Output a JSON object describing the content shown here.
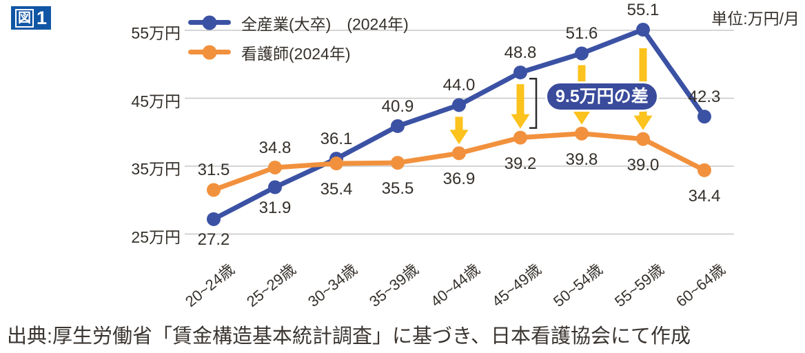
{
  "figure_badge": {
    "kanji": "図",
    "number": "1"
  },
  "unit_label": "単位:万円/月",
  "source_text": "出典:厚生労働省「賃金構造基本統計調査」に基づき、日本看護協会にて作成",
  "chart_data": {
    "type": "line",
    "title": "",
    "xlabel": "",
    "ylabel": "万円/月",
    "ylim": [
      25,
      57
    ],
    "grid": true,
    "legend_position": "top-left-inside",
    "categories": [
      "20~24歳",
      "25~29歳",
      "30~34歳",
      "35~39歳",
      "40~44歳",
      "45~49歳",
      "50~54歳",
      "55~59歳",
      "60~64歳"
    ],
    "y_ticks": [
      {
        "value": 55,
        "label": "55万円"
      },
      {
        "value": 45,
        "label": "45万円"
      },
      {
        "value": 35,
        "label": "35万円"
      },
      {
        "value": 25,
        "label": "25万円"
      }
    ],
    "series": [
      {
        "name": "全産業(大卒)　(2024年)",
        "color": "#3b52a4",
        "values": [
          27.2,
          31.9,
          36.1,
          40.9,
          44.0,
          48.8,
          51.6,
          55.1,
          42.3
        ],
        "label_side": [
          "below",
          "below",
          "above",
          "above",
          "above",
          "above",
          "above",
          "above",
          "above"
        ],
        "label_below_offset": 16
      },
      {
        "name": "看護師(2024年)",
        "color": "#f2913d",
        "values": [
          31.5,
          34.8,
          35.4,
          35.5,
          36.9,
          39.2,
          39.8,
          39.0,
          34.4
        ],
        "label_side": [
          "above",
          "above",
          "below",
          "below",
          "below",
          "below",
          "below",
          "below",
          "below"
        ],
        "label_below_offset": 24
      }
    ],
    "annotation": {
      "text": "9.5万円の差",
      "pill_color": "#3a4b9c",
      "arrow_color": "#fcc21d",
      "arrow_categories": [
        "40~44歳",
        "45~49歳",
        "50~54歳",
        "55~59歳"
      ],
      "bracket_category": "45~49歳",
      "bracket_color": "#2b2b2b"
    },
    "gridline_color": "#c7c7c7",
    "text_color": "#35302b"
  }
}
